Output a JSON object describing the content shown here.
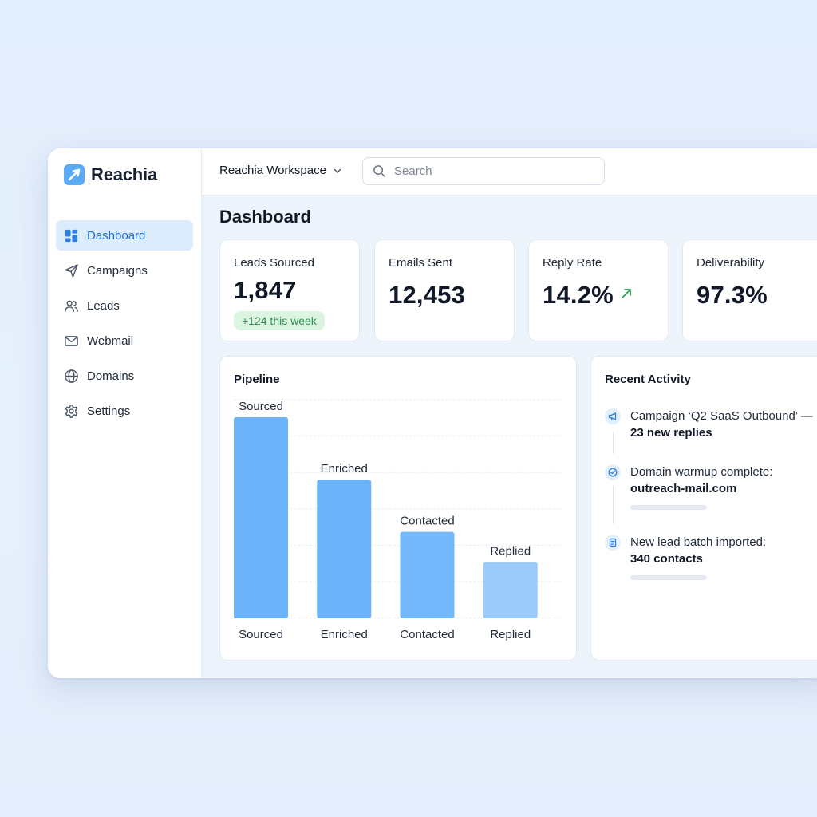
{
  "app": {
    "name": "Reachia"
  },
  "sidebar": {
    "items": [
      {
        "label": "Dashboard",
        "icon": "dashboard-icon",
        "active": true
      },
      {
        "label": "Campaigns",
        "icon": "send-icon"
      },
      {
        "label": "Leads",
        "icon": "users-icon"
      },
      {
        "label": "Webmail",
        "icon": "mail-icon"
      },
      {
        "label": "Domains",
        "icon": "globe-icon"
      },
      {
        "label": "Settings",
        "icon": "gear-icon"
      }
    ]
  },
  "header": {
    "workspace": "Reachia Workspace",
    "search_placeholder": "Search"
  },
  "page": {
    "title": "Dashboard"
  },
  "stats": [
    {
      "label": "Leads Sourced",
      "value": "1,847",
      "badge": "+124 this week"
    },
    {
      "label": "Emails Sent",
      "value": "12,453"
    },
    {
      "label": "Reply Rate",
      "value": "14.2%",
      "trend": "up-right-arrow-icon"
    },
    {
      "label": "Deliverability",
      "value": "97.3%"
    }
  ],
  "pipeline": {
    "title": "Pipeline",
    "chart_data": {
      "type": "bar",
      "categories": [
        "Sourced",
        "Enriched",
        "Contacted",
        "Replied"
      ],
      "values": [
        100,
        69,
        43,
        28
      ],
      "ylim": [
        0,
        100
      ],
      "grid": true,
      "colors": [
        "#6cb4f9",
        "#6cb4f9",
        "#73b8fa",
        "#9ccbfb"
      ]
    }
  },
  "activity": {
    "title": "Recent Activity",
    "items": [
      {
        "text": "Campaign ‘Q2 SaaS Outbound’ —",
        "strong": "23 new replies",
        "icon": "megaphone-icon"
      },
      {
        "text": "Domain warmup complete:",
        "strong": "outreach-mail.com",
        "icon": "check-circle-icon"
      },
      {
        "text": "New lead batch imported:",
        "strong": "340 contacts",
        "icon": "document-icon"
      }
    ]
  },
  "colors": {
    "accent": "#1e6fd0",
    "bar": "#6cb4f9",
    "success": "#2f8a4f"
  }
}
